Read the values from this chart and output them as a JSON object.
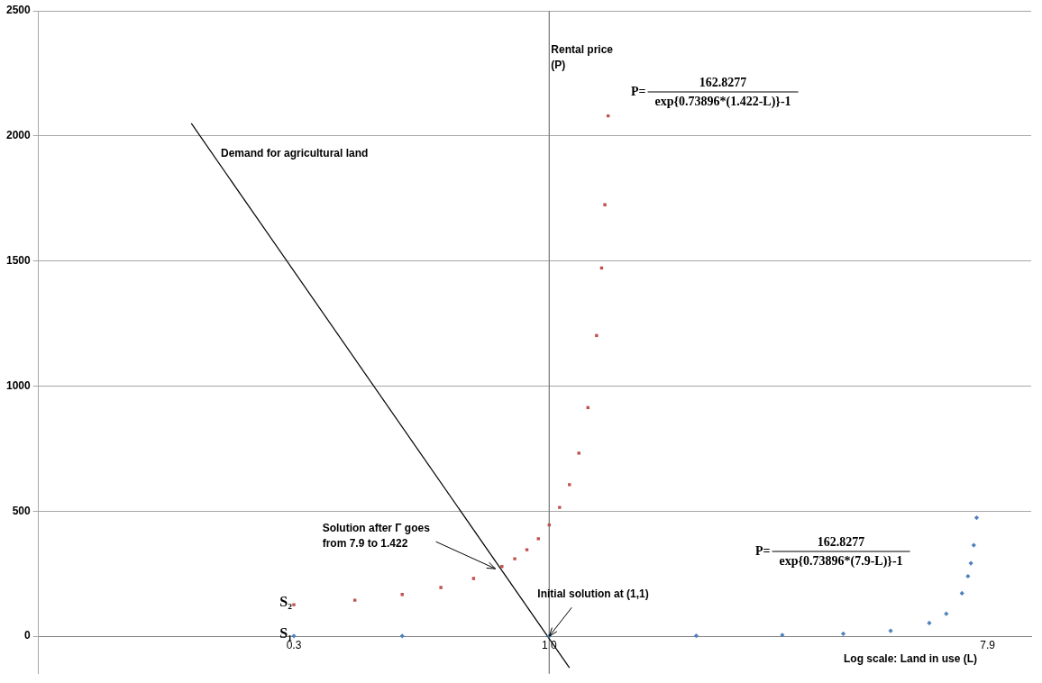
{
  "chart_data": {
    "type": "scatter",
    "xlabel": "Log scale: Land in use (L)",
    "log": "x",
    "xlim": [
      0.09,
      9.7
    ],
    "xticks": [
      0.3,
      {
        "value": 1,
        "label": "1.0"
      },
      7.9
    ],
    "ylim": [
      -150,
      2500
    ],
    "yticks": [
      0,
      500,
      1000,
      1500,
      2000,
      2500
    ],
    "grid": "y",
    "legend": false,
    "series": [
      {
        "name": "S₂",
        "marker": "square",
        "color": "#c0504d",
        "x": [
          0.3,
          0.4,
          0.5,
          0.6,
          0.7,
          0.8,
          0.85,
          0.9,
          0.95,
          1.0,
          1.05,
          1.1,
          1.15,
          1.2,
          1.25,
          1.28,
          1.3,
          1.32
        ],
        "values": [
          126,
          144,
          167,
          195,
          231,
          279,
          310,
          346,
          390,
          445,
          515,
          606,
          732,
          914,
          1202,
          1472,
          1725,
          2080
        ]
      },
      {
        "name": "S₁",
        "marker": "diamond",
        "color": "#4f81bd",
        "x": [
          0.3,
          0.5,
          1,
          2,
          3,
          4,
          5,
          6,
          6.5,
          7,
          7.2,
          7.3,
          7.4,
          7.5
        ],
        "values": [
          1,
          1,
          1,
          2,
          5,
          10,
          22,
          53,
          90,
          172,
          240,
          292,
          364,
          474
        ]
      },
      {
        "type": "line",
        "marker": "none",
        "line_style": "solid",
        "color": "#000000",
        "x": [
          0.185,
          1.1
        ],
        "values": [
          2050,
          -126
        ]
      }
    ],
    "ref_lines": [
      {
        "axis": "x",
        "value": 1,
        "label": "Rental price (P)",
        "color": "#808080"
      }
    ],
    "annotations": [
      "Demand for agricultural land",
      {
        "text": "Solution after Γ goes from 7.9 to 1.422",
        "x": 0.776,
        "y": 270
      },
      {
        "text": "Initial solution at (1,1)",
        "x": 1,
        "y": 0
      },
      "P=",
      "162.8277",
      "exp{0.73896*(1.422-L)}-1",
      "P=",
      "162.8277",
      "exp{0.73896*(7.9-L)}-1"
    ]
  }
}
